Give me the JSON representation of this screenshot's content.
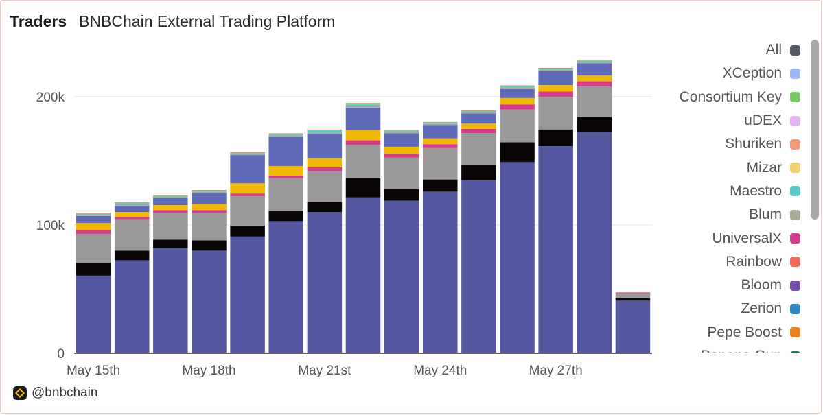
{
  "header": {
    "title": "Traders",
    "subtitle": "BNBChain External Trading Platform"
  },
  "footer": {
    "handle": "@bnbchain"
  },
  "legend": [
    {
      "label": "All",
      "color": "#555a66"
    },
    {
      "label": "XCeption",
      "color": "#9fb9f0"
    },
    {
      "label": "Consortium Key",
      "color": "#7cc66a"
    },
    {
      "label": "uDEX",
      "color": "#e2b4f2"
    },
    {
      "label": "Shuriken",
      "color": "#f49a7a"
    },
    {
      "label": "Mizar",
      "color": "#f4d06c"
    },
    {
      "label": "Maestro",
      "color": "#5ac8c8"
    },
    {
      "label": "Blum",
      "color": "#a6ac98"
    },
    {
      "label": "UniversalX",
      "color": "#d63c8c"
    },
    {
      "label": "Rainbow",
      "color": "#ee6a5c"
    },
    {
      "label": "Bloom",
      "color": "#7a4fa8"
    },
    {
      "label": "Zerion",
      "color": "#2e86c2"
    },
    {
      "label": "Pepe Boost",
      "color": "#ee8418"
    },
    {
      "label": "Banana Gun",
      "color": "#237a6c"
    }
  ],
  "chart_data": {
    "type": "bar",
    "stacked": true,
    "ylim": [
      0,
      230000
    ],
    "yticks": [
      {
        "value": 0,
        "label": "0"
      },
      {
        "value": 100000,
        "label": "100k"
      },
      {
        "value": 200000,
        "label": "200k"
      }
    ],
    "xtick_labels": [
      {
        "index": 0,
        "label": "May 15th"
      },
      {
        "index": 3,
        "label": "May 18th"
      },
      {
        "index": 6,
        "label": "May 21st"
      },
      {
        "index": 9,
        "label": "May 24th"
      },
      {
        "index": 12,
        "label": "May 27th"
      }
    ],
    "categories": [
      "May 15",
      "May 16",
      "May 17",
      "May 18",
      "May 19",
      "May 20",
      "May 21",
      "May 22",
      "May 23",
      "May 24",
      "May 25",
      "May 26",
      "May 27",
      "May 28",
      "May 29"
    ],
    "grid": true,
    "series": [
      {
        "color": "#5557a0",
        "values": [
          60500,
          72500,
          82000,
          80000,
          91000,
          103000,
          110000,
          121500,
          119000,
          126000,
          135000,
          149000,
          161500,
          172500,
          41000
        ]
      },
      {
        "color": "#0a0606",
        "values": [
          10000,
          7500,
          6500,
          8000,
          8500,
          8000,
          8000,
          15000,
          9000,
          9500,
          12000,
          15500,
          13000,
          11500,
          2000
        ]
      },
      {
        "color": "#999999",
        "values": [
          22500,
          24500,
          21000,
          21500,
          23000,
          25500,
          24000,
          26000,
          24500,
          24500,
          24500,
          25500,
          25500,
          24000,
          3500
        ]
      },
      {
        "color": "#d63c8c",
        "values": [
          3000,
          1800,
          2000,
          2000,
          2000,
          2000,
          3000,
          3500,
          3000,
          3000,
          3500,
          4000,
          4000,
          4000,
          500
        ]
      },
      {
        "color": "#f0b800",
        "values": [
          5500,
          3800,
          4000,
          4800,
          8000,
          7500,
          7000,
          8000,
          5500,
          4500,
          4000,
          5000,
          5000,
          4500,
          0
        ]
      },
      {
        "color": "#5f6ab8",
        "values": [
          5500,
          5000,
          5500,
          8500,
          22000,
          23000,
          19000,
          17500,
          10500,
          10500,
          8000,
          7000,
          11000,
          9500,
          0
        ]
      },
      {
        "color": "#a6ac98",
        "values": [
          1000,
          1000,
          1000,
          1000,
          1000,
          1000,
          1000,
          1500,
          1000,
          1000,
          1000,
          1000,
          1000,
          1000,
          500
        ]
      },
      {
        "color": "#5ac8c8",
        "values": [
          600,
          800,
          500,
          600,
          500,
          800,
          1800,
          1000,
          800,
          700,
          600,
          1000,
          800,
          900,
          0
        ]
      },
      {
        "color": "#7cc66a",
        "values": [
          400,
          400,
          300,
          300,
          300,
          300,
          300,
          800,
          400,
          300,
          300,
          500,
          400,
          600,
          0
        ]
      },
      {
        "color": "#ee6a5c",
        "values": [
          500,
          300,
          300,
          500,
          600,
          300,
          300,
          300,
          300,
          300,
          500,
          300,
          300,
          300,
          300
        ]
      }
    ]
  }
}
